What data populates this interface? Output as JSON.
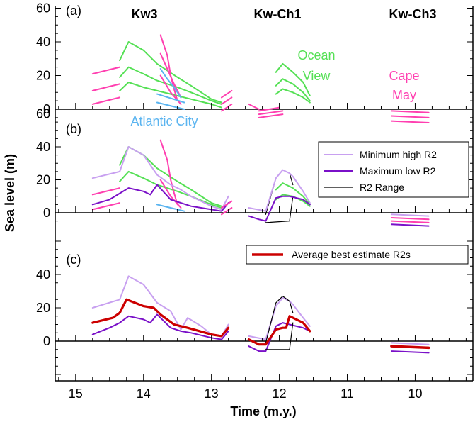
{
  "figure": {
    "ylabel": "Sea level (m)",
    "xlabel": "Time (m.y.)",
    "x_ticks": [
      15,
      14,
      13,
      12,
      11,
      10
    ],
    "xlim": [
      15.3,
      9.15
    ],
    "sections": [
      "Kw3",
      "Kw-Ch1",
      "Kw-Ch3"
    ]
  },
  "chart_data": [
    {
      "type": "line",
      "panel_label": "(a)",
      "ylim": [
        -5,
        60
      ],
      "y_ticks": [
        0,
        20,
        40,
        60
      ],
      "annotations": [
        {
          "text": "Ocean",
          "color": "#55e055"
        },
        {
          "text": "View",
          "color": "#55e055"
        },
        {
          "text": "Cape",
          "color": "#ff3fb0"
        },
        {
          "text": "May",
          "color": "#ff3fb0"
        },
        {
          "text": "Atlantic City",
          "color": "#5ab4f0"
        }
      ],
      "series": [
        {
          "color": "#ff3fb0",
          "x": [
            14.75,
            14.35
          ],
          "y": [
            21,
            25
          ]
        },
        {
          "color": "#ff3fb0",
          "x": [
            14.75,
            14.35
          ],
          "y": [
            11,
            15
          ]
        },
        {
          "color": "#ff3fb0",
          "x": [
            14.75,
            14.35
          ],
          "y": [
            3,
            7
          ]
        },
        {
          "color": "#55e055",
          "x": [
            14.35,
            14.22,
            14.0,
            13.8,
            13.5,
            13.3,
            13.0,
            12.85
          ],
          "y": [
            29,
            40,
            35,
            27,
            19,
            14,
            6,
            4
          ]
        },
        {
          "color": "#55e055",
          "x": [
            14.35,
            14.22,
            14.0,
            13.8,
            13.5,
            13.3,
            13.0,
            12.85
          ],
          "y": [
            19,
            25,
            21,
            17,
            13,
            10,
            5,
            3
          ]
        },
        {
          "color": "#55e055",
          "x": [
            14.35,
            14.22,
            14.0,
            13.8,
            13.5,
            13.3,
            13.0,
            12.85
          ],
          "y": [
            11,
            16,
            13,
            11,
            8,
            6,
            3,
            1
          ]
        },
        {
          "color": "#ff3fb0",
          "x": [
            13.75,
            13.65,
            13.6,
            13.55,
            13.5
          ],
          "y": [
            44,
            32,
            20,
            12,
            5
          ]
        },
        {
          "color": "#ff3fb0",
          "x": [
            13.75,
            13.65,
            13.55,
            13.45
          ],
          "y": [
            33,
            24,
            15,
            7
          ]
        },
        {
          "color": "#ff3fb0",
          "x": [
            13.75,
            13.6,
            13.45
          ],
          "y": [
            20,
            10,
            3
          ]
        },
        {
          "color": "#5ab4f0",
          "x": [
            13.75,
            13.65,
            13.55,
            13.45
          ],
          "y": [
            24,
            18,
            13,
            7
          ]
        },
        {
          "color": "#5ab4f0",
          "x": [
            13.8,
            13.4
          ],
          "y": [
            9,
            4
          ]
        },
        {
          "color": "#5ab4f0",
          "x": [
            13.8,
            13.4
          ],
          "y": [
            4,
            0
          ]
        },
        {
          "color": "#ff3fb0",
          "x": [
            12.85,
            12.7
          ],
          "y": [
            7,
            11
          ]
        },
        {
          "color": "#ff3fb0",
          "x": [
            12.85,
            12.7
          ],
          "y": [
            3,
            7
          ]
        },
        {
          "color": "#ff3fb0",
          "x": [
            12.85,
            12.7
          ],
          "y": [
            -1,
            3
          ]
        },
        {
          "color": "#ff3fb0",
          "x": [
            12.45,
            12.3
          ],
          "y": [
            3,
            0
          ]
        },
        {
          "color": "#ff3fb0",
          "x": [
            12.3,
            12.0
          ],
          "y": [
            -1,
            1
          ]
        },
        {
          "color": "#ff3fb0",
          "x": [
            12.3,
            11.95
          ],
          "y": [
            -3,
            -1
          ]
        },
        {
          "color": "#ff3fb0",
          "x": [
            12.3,
            11.95
          ],
          "y": [
            -5,
            -3
          ]
        },
        {
          "color": "#55e055",
          "x": [
            12.05,
            11.95,
            11.8,
            11.65,
            11.55
          ],
          "y": [
            22,
            27,
            22,
            16,
            8
          ]
        },
        {
          "color": "#55e055",
          "x": [
            12.05,
            11.95,
            11.8,
            11.65,
            11.55
          ],
          "y": [
            14,
            18,
            15,
            10,
            5
          ]
        },
        {
          "color": "#55e055",
          "x": [
            12.05,
            11.95,
            11.8,
            11.65,
            11.55
          ],
          "y": [
            9,
            12,
            10,
            7,
            4
          ]
        },
        {
          "color": "#ff3fb0",
          "x": [
            10.35,
            9.8
          ],
          "y": [
            -1,
            -2
          ]
        },
        {
          "color": "#ff3fb0",
          "x": [
            10.35,
            9.8
          ],
          "y": [
            -4,
            -5
          ]
        },
        {
          "color": "#ff3fb0",
          "x": [
            10.35,
            9.8
          ],
          "y": [
            -7,
            -8
          ]
        }
      ]
    },
    {
      "type": "line",
      "panel_label": "(b)",
      "ylim": [
        -10,
        70
      ],
      "y_ticks": [
        0,
        20,
        40,
        60
      ],
      "legend": [
        {
          "label": "Minimum high R2",
          "color": "#c8a0f0"
        },
        {
          "label": "Maximum low R2",
          "color": "#7a10c8"
        },
        {
          "label": "R2 Range",
          "color": "#000000"
        }
      ],
      "series": [
        {
          "color": "#ff3fb0",
          "x": [
            14.75,
            14.35
          ],
          "y": [
            11,
            15
          ]
        },
        {
          "color": "#ff3fb0",
          "x": [
            14.75,
            14.35
          ],
          "y": [
            2,
            6
          ]
        },
        {
          "color": "#55e055",
          "x": [
            14.35,
            14.22,
            14.0,
            13.8,
            13.5,
            13.3,
            13.0,
            12.85
          ],
          "y": [
            29,
            40,
            35,
            27,
            19,
            14,
            6,
            4
          ]
        },
        {
          "color": "#55e055",
          "x": [
            14.35,
            14.22,
            14.0,
            13.8,
            13.5,
            13.3,
            13.0,
            12.85
          ],
          "y": [
            19,
            25,
            21,
            17,
            13,
            10,
            5,
            3
          ]
        },
        {
          "color": "#ff3fb0",
          "x": [
            13.75,
            13.65,
            13.6,
            13.55,
            13.5
          ],
          "y": [
            44,
            32,
            20,
            12,
            5
          ]
        },
        {
          "color": "#ff3fb0",
          "x": [
            13.75,
            13.6,
            13.45
          ],
          "y": [
            20,
            10,
            3
          ]
        },
        {
          "color": "#5ab4f0",
          "x": [
            13.8,
            13.4
          ],
          "y": [
            5,
            1
          ]
        },
        {
          "color": "#c8a0f0",
          "x": [
            14.75,
            14.35,
            14.22,
            14.0,
            13.8,
            13.6,
            13.45,
            13.3,
            13.0,
            12.85,
            12.75
          ],
          "y": [
            21,
            25,
            40,
            35,
            23,
            17,
            14,
            10,
            4,
            2,
            10
          ]
        },
        {
          "color": "#7a10c8",
          "x": [
            14.75,
            14.5,
            14.22,
            14.0,
            13.9,
            13.8,
            13.6,
            13.45,
            13.3,
            13.0,
            12.85,
            12.75
          ],
          "y": [
            5,
            8,
            15,
            13,
            11,
            17,
            8,
            6,
            4,
            2,
            1,
            6
          ]
        },
        {
          "color": "#ff3fb0",
          "x": [
            12.85,
            12.7
          ],
          "y": [
            3,
            7
          ]
        },
        {
          "color": "#ff3fb0",
          "x": [
            12.85,
            12.7
          ],
          "y": [
            -1,
            3
          ]
        },
        {
          "color": "#000000",
          "x": [
            12.2,
            12.05,
            11.95,
            11.85,
            11.8
          ],
          "y": [
            -1,
            21,
            26,
            24,
            17
          ]
        },
        {
          "color": "#000000",
          "x": [
            12.2,
            11.85,
            11.8
          ],
          "y": [
            -6,
            -5,
            10
          ]
        },
        {
          "color": "#55e055",
          "x": [
            12.05,
            11.95,
            11.8,
            11.65,
            11.55
          ],
          "y": [
            14,
            18,
            15,
            10,
            5
          ]
        },
        {
          "color": "#55e055",
          "x": [
            12.05,
            11.95,
            11.8,
            11.65,
            11.55
          ],
          "y": [
            8,
            11,
            10,
            7,
            4
          ]
        },
        {
          "color": "#c8a0f0",
          "x": [
            12.45,
            12.2,
            12.05,
            11.95,
            11.85,
            11.8,
            11.65,
            11.55
          ],
          "y": [
            3,
            1,
            21,
            26,
            24,
            22,
            13,
            6
          ]
        },
        {
          "color": "#7a10c8",
          "x": [
            12.45,
            12.3,
            12.2,
            12.05,
            11.95,
            11.85,
            11.65,
            11.55
          ],
          "y": [
            -2,
            -4,
            -5,
            9,
            10,
            10,
            8,
            5
          ]
        },
        {
          "color": "#c8a0f0",
          "x": [
            10.35,
            9.8
          ],
          "y": [
            -1,
            -2
          ]
        },
        {
          "color": "#ff3fb0",
          "x": [
            10.35,
            9.8
          ],
          "y": [
            -3,
            -4
          ]
        },
        {
          "color": "#ff3fb0",
          "x": [
            10.35,
            9.8
          ],
          "y": [
            -5,
            -6
          ]
        },
        {
          "color": "#7a10c8",
          "x": [
            10.35,
            9.8
          ],
          "y": [
            -7,
            -8
          ]
        }
      ]
    },
    {
      "type": "line",
      "panel_label": "(c)",
      "ylim": [
        -20,
        60
      ],
      "y_ticks": [
        0,
        20,
        40
      ],
      "legend": [
        {
          "label": "Average best estimate R2s",
          "color": "#cc0000"
        }
      ],
      "series": [
        {
          "color": "#c8a0f0",
          "x": [
            14.75,
            14.35,
            14.22,
            14.0,
            13.8,
            13.6,
            13.45,
            13.35,
            13.15,
            13.0,
            12.85,
            12.75
          ],
          "y": [
            20,
            25,
            39,
            34,
            23,
            18,
            7,
            14,
            9,
            4,
            3,
            10
          ]
        },
        {
          "color": "#7a10c8",
          "x": [
            14.75,
            14.5,
            14.35,
            14.22,
            14.0,
            13.9,
            13.8,
            13.6,
            13.45,
            13.3,
            13.0,
            12.85,
            12.75
          ],
          "y": [
            4,
            8,
            11,
            15,
            13,
            11,
            16,
            8,
            6,
            5,
            2,
            1,
            6
          ]
        },
        {
          "color": "#cc0000",
          "x": [
            14.75,
            14.45,
            14.35,
            14.25,
            14.0,
            13.85,
            13.75,
            13.55,
            13.35,
            13.0,
            12.85,
            12.75
          ],
          "y": [
            11,
            14,
            17,
            25,
            21,
            20,
            16,
            10,
            8,
            4,
            3,
            8
          ]
        },
        {
          "color": "#c8a0f0",
          "x": [
            12.45,
            12.2,
            12.05,
            11.95,
            11.85,
            11.8,
            11.65,
            11.55
          ],
          "y": [
            3,
            1,
            21,
            26,
            24,
            22,
            14,
            9
          ]
        },
        {
          "color": "#7a10c8",
          "x": [
            12.45,
            12.3,
            12.2,
            12.05,
            11.95,
            11.85,
            11.65,
            11.55
          ],
          "y": [
            -3,
            -6,
            -6,
            9,
            11,
            10,
            8,
            6
          ]
        },
        {
          "color": "#000000",
          "x": [
            12.2,
            12.05,
            11.95,
            11.85,
            11.8
          ],
          "y": [
            -1,
            23,
            27,
            24,
            17
          ]
        },
        {
          "color": "#000000",
          "x": [
            12.2,
            11.85,
            11.8
          ],
          "y": [
            -5,
            -5,
            11
          ]
        },
        {
          "color": "#cc0000",
          "x": [
            12.45,
            12.3,
            12.2,
            12.05,
            11.95,
            11.9,
            11.85,
            11.8,
            11.65,
            11.55
          ],
          "y": [
            1,
            -2,
            -2,
            7,
            8,
            8,
            15,
            14,
            11,
            6
          ]
        },
        {
          "color": "#c8a0f0",
          "x": [
            10.35,
            9.8
          ],
          "y": [
            -1,
            -2
          ]
        },
        {
          "color": "#cc0000",
          "x": [
            10.35,
            9.8
          ],
          "y": [
            -3,
            -4
          ],
          "width": 3.5
        },
        {
          "color": "#7a10c8",
          "x": [
            10.35,
            9.8
          ],
          "y": [
            -6,
            -7
          ]
        }
      ]
    }
  ]
}
